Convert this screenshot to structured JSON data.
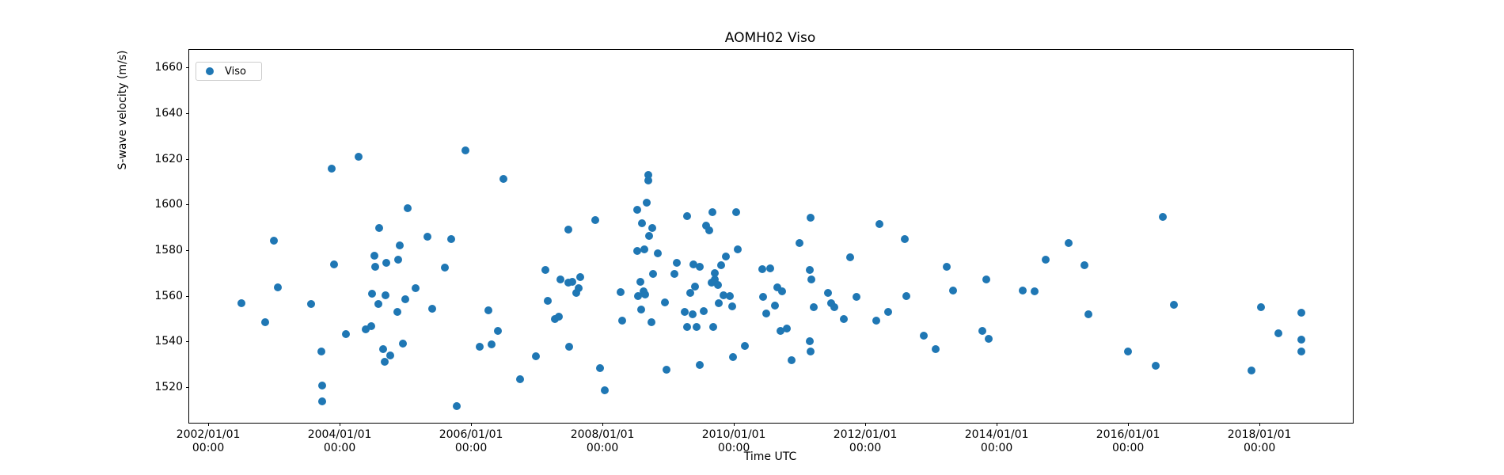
{
  "title": "AOMH02 Viso",
  "legend": {
    "label": "Viso"
  },
  "chart_data": {
    "type": "scatter",
    "title": "AOMH02 Viso",
    "xlabel": "Time UTC",
    "ylabel": "S-wave velocity (m/s)",
    "xlim": [
      2001.71,
      2019.42
    ],
    "ylim": [
      1504.3,
      1667.8
    ],
    "grid": false,
    "legend_position": "upper left",
    "x_ticks": [
      {
        "value": 2002,
        "lines": [
          "2002/01/01",
          "00:00"
        ]
      },
      {
        "value": 2004,
        "lines": [
          "2004/01/01",
          "00:00"
        ]
      },
      {
        "value": 2006,
        "lines": [
          "2006/01/01",
          "00:00"
        ]
      },
      {
        "value": 2008,
        "lines": [
          "2008/01/01",
          "00:00"
        ]
      },
      {
        "value": 2010,
        "lines": [
          "2010/01/01",
          "00:00"
        ]
      },
      {
        "value": 2012,
        "lines": [
          "2012/01/01",
          "00:00"
        ]
      },
      {
        "value": 2014,
        "lines": [
          "2014/01/01",
          "00:00"
        ]
      },
      {
        "value": 2016,
        "lines": [
          "2016/01/01",
          "00:00"
        ]
      },
      {
        "value": 2018,
        "lines": [
          "2018/01/01",
          "00:00"
        ]
      }
    ],
    "y_ticks": [
      1520,
      1540,
      1560,
      1580,
      1600,
      1620,
      1640,
      1660
    ],
    "series": [
      {
        "name": "Viso",
        "color": "#1f77b4",
        "marker": "circle",
        "marker_size_px": 10,
        "points": [
          [
            2004.29,
            1620.8
          ],
          [
            2003.88,
            1615.6
          ],
          [
            2005.92,
            1623.6
          ],
          [
            2006.49,
            1611.1
          ],
          [
            2005.04,
            1598.3
          ],
          [
            2004.6,
            1589.6
          ],
          [
            2003.0,
            1584.1
          ],
          [
            2005.34,
            1585.8
          ],
          [
            2005.7,
            1584.8
          ],
          [
            2004.92,
            1582.0
          ],
          [
            2007.48,
            1588.9
          ],
          [
            2004.53,
            1577.5
          ],
          [
            2003.92,
            1573.7
          ],
          [
            2004.71,
            1574.4
          ],
          [
            2004.89,
            1575.8
          ],
          [
            2004.54,
            1572.6
          ],
          [
            2005.6,
            1572.2
          ],
          [
            2007.13,
            1571.2
          ],
          [
            2007.36,
            1567.1
          ],
          [
            2007.48,
            1565.7
          ],
          [
            2007.54,
            1566.0
          ],
          [
            2007.66,
            1568.1
          ],
          [
            2003.06,
            1563.6
          ],
          [
            2007.6,
            1561.2
          ],
          [
            2002.51,
            1556.7
          ],
          [
            2003.57,
            1556.5
          ],
          [
            2004.49,
            1560.8
          ],
          [
            2004.7,
            1560.2
          ],
          [
            2004.59,
            1556.2
          ],
          [
            2005.0,
            1558.4
          ],
          [
            2005.16,
            1563.2
          ],
          [
            2004.88,
            1552.9
          ],
          [
            2005.41,
            1554.3
          ],
          [
            2007.17,
            1557.7
          ],
          [
            2006.27,
            1553.6
          ],
          [
            2007.28,
            1549.8
          ],
          [
            2007.34,
            1550.8
          ],
          [
            2002.87,
            1548.4
          ],
          [
            2006.41,
            1544.6
          ],
          [
            2004.1,
            1543.2
          ],
          [
            2004.4,
            1545.3
          ],
          [
            2004.48,
            1546.7
          ],
          [
            2004.96,
            1539.0
          ],
          [
            2004.66,
            1536.6
          ],
          [
            2004.77,
            1533.8
          ],
          [
            2004.69,
            1531.0
          ],
          [
            2003.72,
            1535.5
          ],
          [
            2006.13,
            1537.6
          ],
          [
            2006.31,
            1538.7
          ],
          [
            2006.99,
            1533.5
          ],
          [
            2007.49,
            1537.6
          ],
          [
            2006.75,
            1523.4
          ],
          [
            2003.73,
            1520.6
          ],
          [
            2003.73,
            1513.7
          ],
          [
            2005.78,
            1511.6
          ],
          [
            2008.7,
            1612.9
          ],
          [
            2008.7,
            1610.4
          ],
          [
            2008.67,
            1600.7
          ],
          [
            2008.53,
            1597.6
          ],
          [
            2008.6,
            1591.7
          ],
          [
            2008.76,
            1589.6
          ],
          [
            2008.71,
            1586.2
          ],
          [
            2009.29,
            1594.8
          ],
          [
            2009.67,
            1596.5
          ],
          [
            2009.58,
            1590.7
          ],
          [
            2009.63,
            1588.6
          ],
          [
            2010.04,
            1596.5
          ],
          [
            2007.89,
            1593.1
          ],
          [
            2011.17,
            1594.2
          ],
          [
            2012.22,
            1591.4
          ],
          [
            2011.0,
            1583.1
          ],
          [
            2012.6,
            1584.8
          ],
          [
            2011.77,
            1576.8
          ],
          [
            2008.53,
            1579.6
          ],
          [
            2008.64,
            1580.3
          ],
          [
            2008.84,
            1578.5
          ],
          [
            2010.06,
            1580.3
          ],
          [
            2009.88,
            1577.2
          ],
          [
            2009.13,
            1574.4
          ],
          [
            2009.39,
            1573.7
          ],
          [
            2009.48,
            1572.6
          ],
          [
            2009.81,
            1573.3
          ],
          [
            2010.43,
            1571.5
          ],
          [
            2010.55,
            1571.9
          ],
          [
            2011.16,
            1571.2
          ],
          [
            2013.24,
            1572.6
          ],
          [
            2007.64,
            1563.3
          ],
          [
            2008.28,
            1561.6
          ],
          [
            2008.58,
            1566.1
          ],
          [
            2008.63,
            1561.9
          ],
          [
            2008.54,
            1559.8
          ],
          [
            2008.65,
            1560.5
          ],
          [
            2008.77,
            1569.5
          ],
          [
            2009.1,
            1569.5
          ],
          [
            2008.59,
            1553.9
          ],
          [
            2008.75,
            1548.4
          ],
          [
            2008.3,
            1549.1
          ],
          [
            2008.95,
            1557.1
          ],
          [
            2009.34,
            1561.2
          ],
          [
            2009.41,
            1563.9
          ],
          [
            2009.25,
            1552.9
          ],
          [
            2009.37,
            1551.8
          ],
          [
            2009.54,
            1553.2
          ],
          [
            2009.29,
            1546.3
          ],
          [
            2009.43,
            1546.3
          ],
          [
            2009.66,
            1565.7
          ],
          [
            2009.71,
            1567.1
          ],
          [
            2009.76,
            1564.7
          ],
          [
            2009.71,
            1569.9
          ],
          [
            2009.77,
            1556.7
          ],
          [
            2009.84,
            1560.2
          ],
          [
            2009.94,
            1559.8
          ],
          [
            2009.98,
            1555.3
          ],
          [
            2009.69,
            1546.3
          ],
          [
            2010.17,
            1538.0
          ],
          [
            2009.99,
            1533.1
          ],
          [
            2009.48,
            1529.7
          ],
          [
            2007.96,
            1528.3
          ],
          [
            2008.04,
            1518.6
          ],
          [
            2008.98,
            1527.6
          ],
          [
            2010.45,
            1559.5
          ],
          [
            2010.49,
            1552.2
          ],
          [
            2010.63,
            1555.7
          ],
          [
            2010.66,
            1563.6
          ],
          [
            2010.73,
            1561.9
          ],
          [
            2010.71,
            1544.6
          ],
          [
            2010.81,
            1545.6
          ],
          [
            2010.88,
            1531.8
          ],
          [
            2011.18,
            1567.1
          ],
          [
            2011.16,
            1540.1
          ],
          [
            2011.17,
            1535.6
          ],
          [
            2011.22,
            1555.0
          ],
          [
            2011.43,
            1561.2
          ],
          [
            2011.48,
            1556.7
          ],
          [
            2011.53,
            1555.0
          ],
          [
            2011.67,
            1549.8
          ],
          [
            2011.87,
            1559.5
          ],
          [
            2012.17,
            1549.1
          ],
          [
            2012.35,
            1552.9
          ],
          [
            2012.63,
            1559.8
          ],
          [
            2012.89,
            1542.5
          ],
          [
            2013.07,
            1536.6
          ],
          [
            2013.33,
            1562.3
          ],
          [
            2016.53,
            1594.5
          ],
          [
            2015.1,
            1583.1
          ],
          [
            2014.75,
            1575.8
          ],
          [
            2015.33,
            1573.3
          ],
          [
            2013.84,
            1567.1
          ],
          [
            2014.4,
            1562.3
          ],
          [
            2014.58,
            1561.9
          ],
          [
            2015.4,
            1551.8
          ],
          [
            2016.7,
            1556.0
          ],
          [
            2018.02,
            1555.0
          ],
          [
            2018.64,
            1552.5
          ],
          [
            2013.78,
            1544.6
          ],
          [
            2013.88,
            1541.1
          ],
          [
            2018.29,
            1543.5
          ],
          [
            2018.64,
            1540.7
          ],
          [
            2018.64,
            1535.6
          ],
          [
            2016.0,
            1535.6
          ],
          [
            2016.42,
            1529.4
          ],
          [
            2017.88,
            1527.3
          ]
        ]
      }
    ]
  },
  "colors": {
    "marker": "#1f77b4",
    "axis": "#000000",
    "legend_border": "#cccccc",
    "background": "#ffffff"
  }
}
